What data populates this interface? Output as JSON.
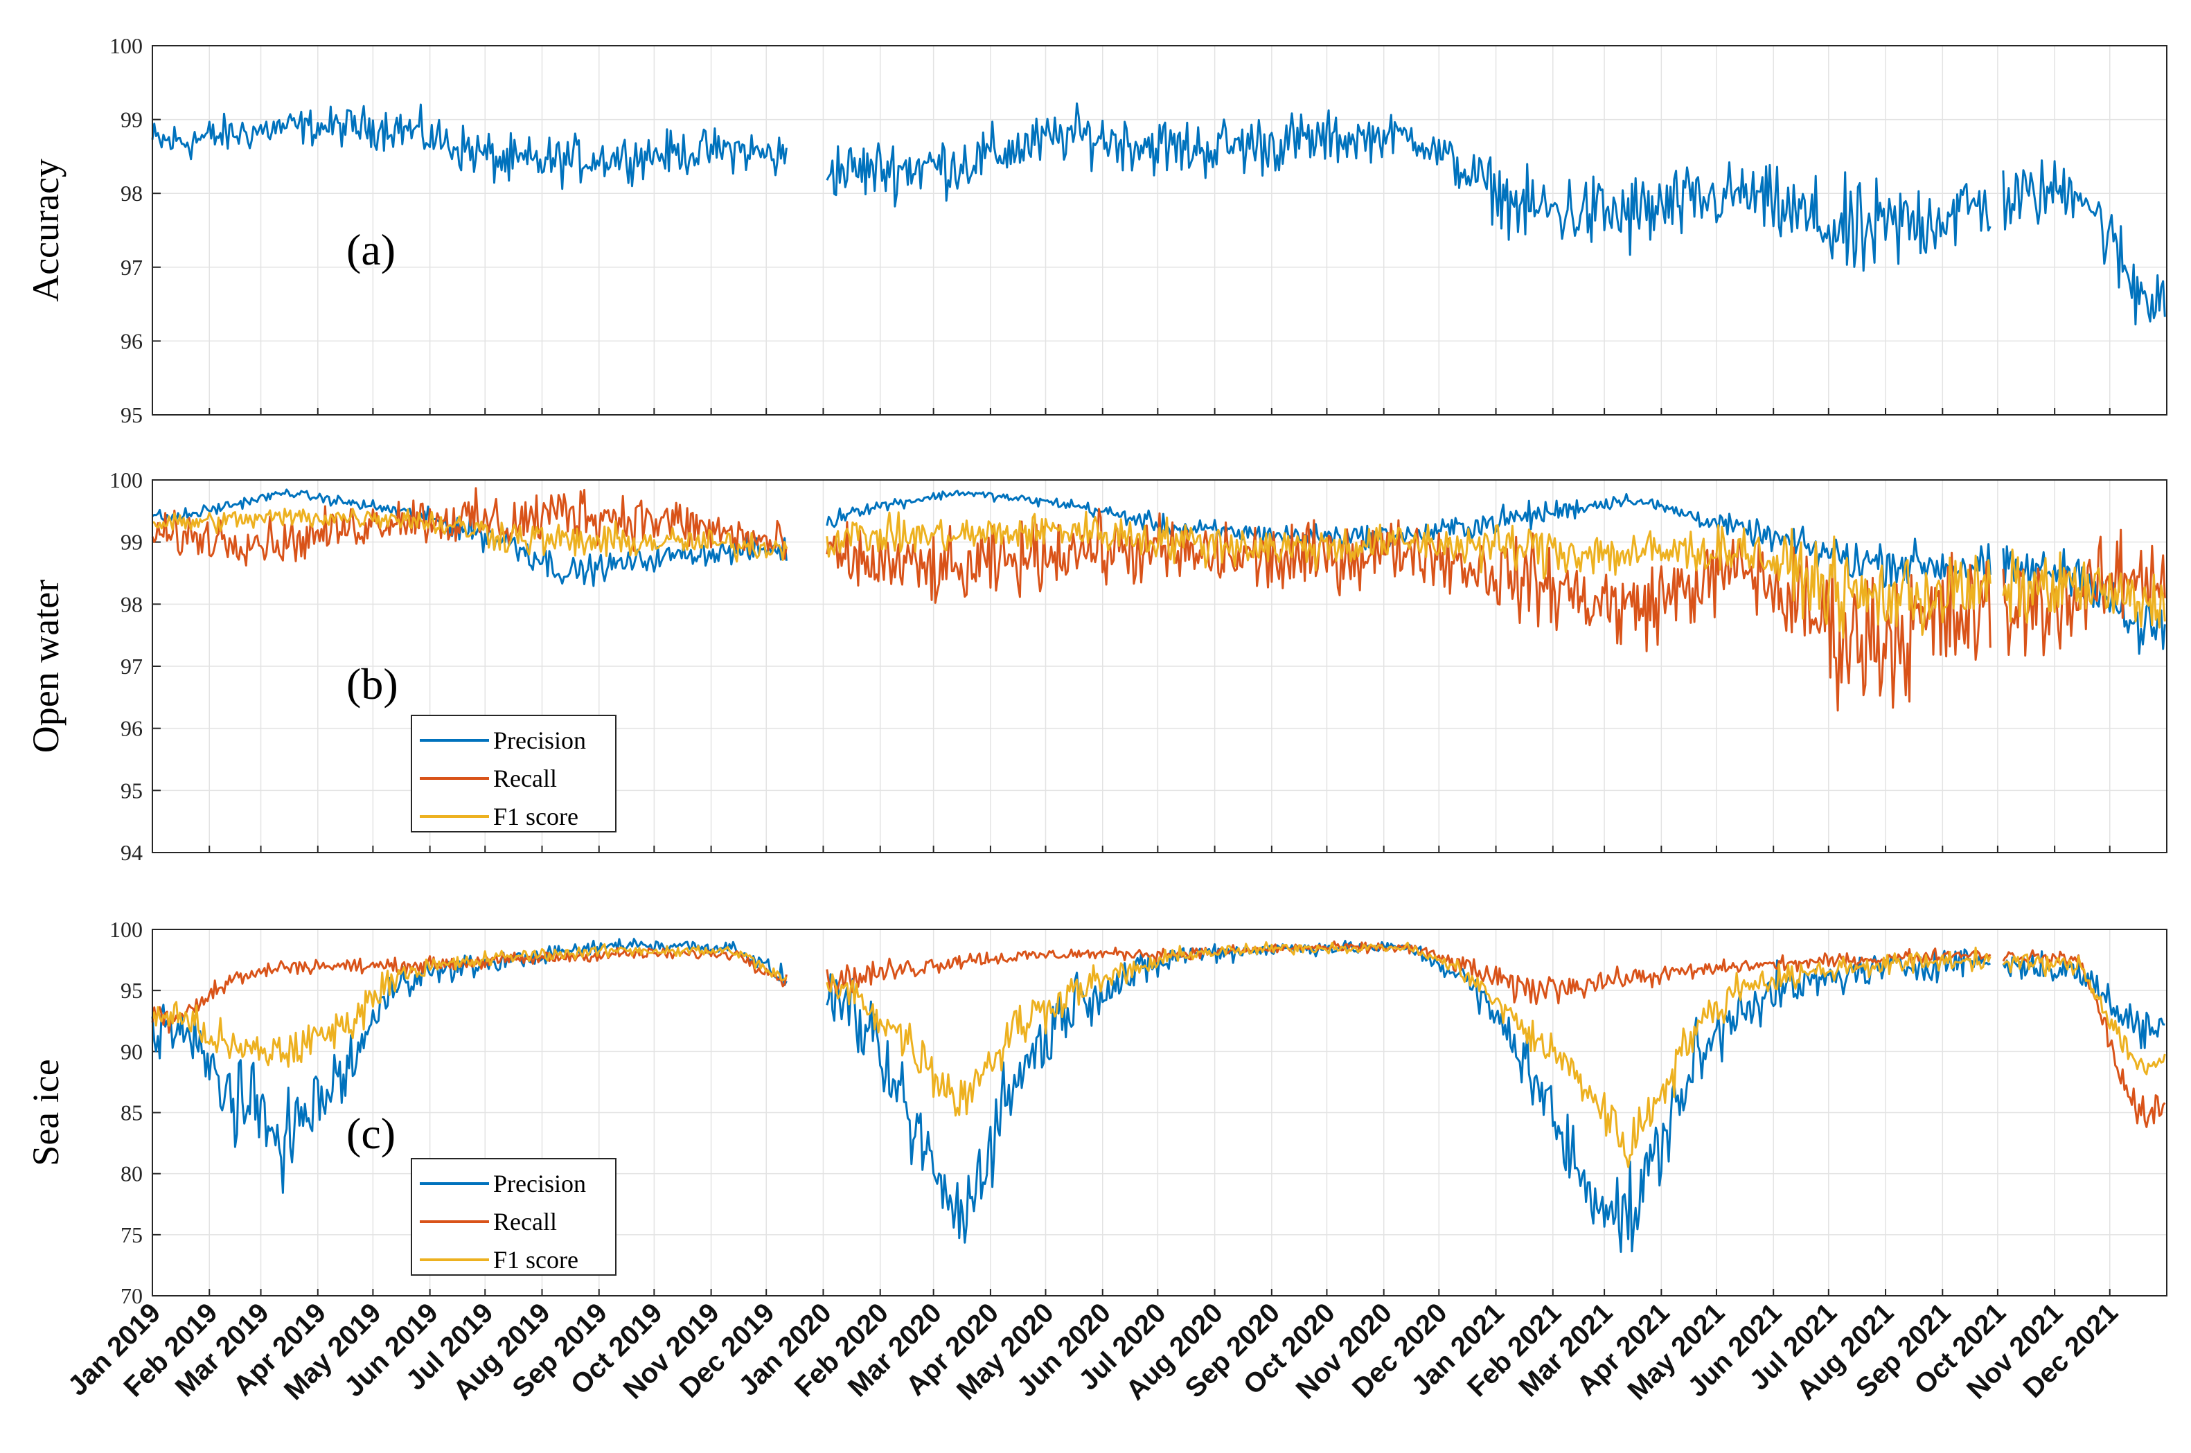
{
  "chart_data": {
    "type": "line",
    "x_range": [
      "2019-01-01",
      "2021-12-31"
    ],
    "xtick_labels": [
      "Jan 2019",
      "Feb 2019",
      "Mar 2019",
      "Apr 2019",
      "May 2019",
      "Jun 2019",
      "Jul 2019",
      "Aug 2019",
      "Sep 2019",
      "Oct 2019",
      "Nov 2019",
      "Dec 2019",
      "Jan 2020",
      "Feb 2020",
      "Mar 2020",
      "Apr 2020",
      "May 2020",
      "Jun 2020",
      "Jul 2020",
      "Aug 2020",
      "Sep 2020",
      "Oct 2020",
      "Nov 2020",
      "Dec 2020",
      "Jan 2021",
      "Feb 2021",
      "Mar 2021",
      "Apr 2021",
      "May 2021",
      "Jun 2021",
      "Jul 2021",
      "Aug 2021",
      "Sep 2021",
      "Oct 2021",
      "Nov 2021",
      "Dec 2021"
    ],
    "data_gaps": [
      [
        "2019-12-13",
        "2020-01-02"
      ],
      [
        "2021-09-28",
        "2021-10-03"
      ]
    ],
    "panels": [
      {
        "label": "(a)",
        "ylabel": "Accuracy",
        "ylim": [
          95,
          100
        ],
        "yticks": [
          "95",
          "96",
          "97",
          "98",
          "99",
          "100"
        ],
        "grid": true,
        "legend": null,
        "series": [
          {
            "name": "Accuracy",
            "color": "#0072BD",
            "months": [
              "2019-01",
              "2019-03",
              "2019-05",
              "2019-07",
              "2019-09",
              "2019-11",
              "2020-01",
              "2020-03",
              "2020-05",
              "2020-07",
              "2020-09",
              "2020-11",
              "2021-01",
              "2021-03",
              "2021-05",
              "2021-07",
              "2021-09",
              "2021-11",
              "2021-12"
            ],
            "mean": [
              98.7,
              98.9,
              98.9,
              98.4,
              98.5,
              98.6,
              98.3,
              98.4,
              98.8,
              98.6,
              98.7,
              98.8,
              97.8,
              97.7,
              98.0,
              97.4,
              97.8,
              98.1,
              96.7
            ],
            "noise": [
              0.25,
              0.2,
              0.25,
              0.3,
              0.25,
              0.25,
              0.35,
              0.35,
              0.3,
              0.35,
              0.35,
              0.2,
              0.4,
              0.5,
              0.35,
              0.6,
              0.45,
              0.35,
              0.5
            ]
          }
        ]
      },
      {
        "label": "(b)",
        "ylabel": "Open water",
        "ylim": [
          94,
          100
        ],
        "yticks": [
          "94",
          "95",
          "96",
          "97",
          "98",
          "99",
          "100"
        ],
        "grid": true,
        "legend": "lower-left",
        "series": [
          {
            "name": "Precision",
            "color": "#0072BD",
            "months": [
              "2019-01",
              "2019-03",
              "2019-05",
              "2019-07",
              "2019-08",
              "2019-10",
              "2019-12",
              "2020-01",
              "2020-03",
              "2020-05",
              "2020-07",
              "2020-09",
              "2020-11",
              "2021-01",
              "2021-03",
              "2021-05",
              "2021-07",
              "2021-09",
              "2021-11",
              "2021-12"
            ],
            "mean": [
              99.4,
              99.8,
              99.5,
              99.0,
              98.5,
              98.8,
              98.9,
              99.5,
              99.8,
              99.6,
              99.2,
              99.1,
              99.1,
              99.4,
              99.7,
              99.2,
              98.7,
              98.6,
              98.5,
              97.6
            ],
            "noise": [
              0.1,
              0.05,
              0.1,
              0.25,
              0.2,
              0.15,
              0.2,
              0.1,
              0.05,
              0.08,
              0.15,
              0.15,
              0.15,
              0.2,
              0.08,
              0.15,
              0.3,
              0.3,
              0.3,
              0.4
            ]
          },
          {
            "name": "Recall",
            "color": "#D95319",
            "months": [
              "2019-01",
              "2019-03",
              "2019-05",
              "2019-07",
              "2019-08",
              "2019-10",
              "2019-12",
              "2020-01",
              "2020-03",
              "2020-05",
              "2020-07",
              "2020-09",
              "2020-11",
              "2021-01",
              "2021-03",
              "2021-05",
              "2021-07",
              "2021-09",
              "2021-11",
              "2021-12"
            ],
            "mean": [
              99.1,
              99.0,
              99.4,
              99.3,
              99.5,
              99.3,
              98.9,
              98.7,
              98.5,
              98.9,
              98.8,
              98.7,
              98.9,
              98.4,
              97.9,
              98.6,
              97.4,
              97.8,
              98.1,
              98.5
            ],
            "noise": [
              0.3,
              0.3,
              0.3,
              0.4,
              0.4,
              0.35,
              0.3,
              0.45,
              0.5,
              0.45,
              0.5,
              0.5,
              0.4,
              0.55,
              0.6,
              0.5,
              1.0,
              0.9,
              0.6,
              0.6
            ]
          },
          {
            "name": "F1 score",
            "color": "#EDB120",
            "months": [
              "2019-01",
              "2019-03",
              "2019-05",
              "2019-07",
              "2019-08",
              "2019-10",
              "2019-12",
              "2020-01",
              "2020-03",
              "2020-05",
              "2020-07",
              "2020-09",
              "2020-11",
              "2021-01",
              "2021-03",
              "2021-05",
              "2021-07",
              "2021-09",
              "2021-11",
              "2021-12"
            ],
            "mean": [
              99.3,
              99.4,
              99.4,
              99.1,
              99.0,
              99.0,
              98.9,
              99.1,
              99.1,
              99.2,
              99.0,
              98.9,
              99.0,
              98.9,
              98.8,
              98.9,
              98.1,
              98.2,
              98.3,
              98.0
            ],
            "noise": [
              0.15,
              0.15,
              0.15,
              0.25,
              0.25,
              0.2,
              0.2,
              0.25,
              0.25,
              0.25,
              0.3,
              0.3,
              0.25,
              0.35,
              0.35,
              0.3,
              0.6,
              0.55,
              0.4,
              0.45
            ]
          }
        ]
      },
      {
        "label": "(c)",
        "ylabel": "Sea ice",
        "ylim": [
          70,
          100
        ],
        "yticks": [
          "70",
          "75",
          "80",
          "85",
          "90",
          "95",
          "100"
        ],
        "grid": true,
        "legend": "lower-left",
        "series": [
          {
            "name": "Precision",
            "color": "#0072BD",
            "months": [
              "2019-01",
              "2019-02",
              "2019-03",
              "2019-04",
              "2019-05",
              "2019-07",
              "2019-09",
              "2019-11",
              "2019-12",
              "2020-01",
              "2020-02",
              "2020-03",
              "2020-04",
              "2020-05",
              "2020-07",
              "2020-09",
              "2020-11",
              "2020-12",
              "2021-01",
              "2021-02",
              "2021-03",
              "2021-04",
              "2021-05",
              "2021-07",
              "2021-09",
              "2021-11",
              "2021-12"
            ],
            "mean": [
              92,
              86,
              83,
              88,
              96,
              97.5,
              98.8,
              98.5,
              95.5,
              94,
              85,
              76,
              88,
              94,
              98,
              98.5,
              98.5,
              96,
              90,
              80,
              76,
              88,
              94,
              96.5,
              97.5,
              96.5,
              92
            ],
            "noise": [
              2,
              3,
              3,
              2.5,
              1.2,
              0.6,
              0.5,
              0.5,
              0.8,
              2,
              3,
              3,
              3,
              2,
              0.8,
              0.5,
              0.4,
              1,
              2,
              3,
              3,
              3,
              1.8,
              1.2,
              1,
              1,
              1.5
            ]
          },
          {
            "name": "Recall",
            "color": "#D95319",
            "months": [
              "2019-01",
              "2019-02",
              "2019-03",
              "2019-05",
              "2019-07",
              "2019-09",
              "2019-11",
              "2019-12",
              "2020-01",
              "2020-03",
              "2020-05",
              "2020-07",
              "2020-09",
              "2020-11",
              "2020-12",
              "2021-01",
              "2021-03",
              "2021-05",
              "2021-07",
              "2021-09",
              "2021-11",
              "2021-12"
            ],
            "mean": [
              93,
              96,
              97,
              97,
              97.5,
              98,
              98,
              95.5,
              96,
              97.5,
              98,
              98,
              98.5,
              98.5,
              97,
              95,
              96,
              97,
              97.5,
              98,
              97.5,
              85
            ],
            "noise": [
              1,
              0.6,
              0.5,
              0.5,
              0.5,
              0.4,
              0.4,
              0.6,
              1,
              0.6,
              0.4,
              0.4,
              0.3,
              0.4,
              0.7,
              1.2,
              0.7,
              0.5,
              0.5,
              0.4,
              0.5,
              1.5
            ]
          },
          {
            "name": "F1 score",
            "color": "#EDB120",
            "months": [
              "2019-01",
              "2019-02",
              "2019-03",
              "2019-04",
              "2019-05",
              "2019-07",
              "2019-09",
              "2019-11",
              "2019-12",
              "2020-01",
              "2020-02",
              "2020-03",
              "2020-04",
              "2020-05",
              "2020-07",
              "2020-09",
              "2020-11",
              "2020-12",
              "2021-01",
              "2021-02",
              "2021-03",
              "2021-04",
              "2021-05",
              "2021-07",
              "2021-09",
              "2021-11",
              "2021-12"
            ],
            "mean": [
              93,
              90,
              90,
              92,
              96.5,
              97.8,
              98.3,
              98.2,
              95.5,
              95,
              91,
              86,
              92,
              95,
              98,
              98.5,
              98.5,
              96.5,
              92,
              88,
              82,
              91,
              95.5,
              97,
              97.5,
              97,
              89
            ],
            "noise": [
              1.2,
              1.5,
              1.5,
              1.5,
              0.8,
              0.5,
              0.4,
              0.4,
              0.6,
              1.2,
              1.5,
              1.8,
              1.8,
              1.2,
              0.5,
              0.4,
              0.3,
              0.7,
              1.2,
              1.8,
              1.8,
              1.8,
              1,
              0.8,
              0.7,
              0.7,
              1
            ]
          }
        ]
      }
    ]
  }
}
